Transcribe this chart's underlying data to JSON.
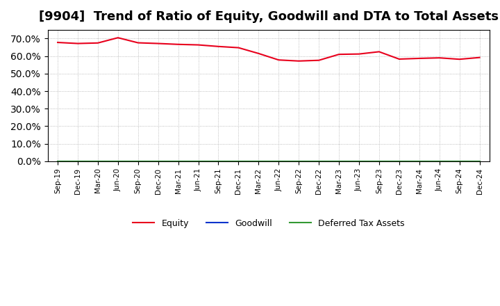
{
  "title": "[9904]  Trend of Ratio of Equity, Goodwill and DTA to Total Assets",
  "x_labels": [
    "Sep-19",
    "Dec-19",
    "Mar-20",
    "Jun-20",
    "Sep-20",
    "Dec-20",
    "Mar-21",
    "Jun-21",
    "Sep-21",
    "Dec-21",
    "Mar-22",
    "Jun-22",
    "Sep-22",
    "Dec-22",
    "Mar-23",
    "Jun-23",
    "Sep-23",
    "Dec-23",
    "Mar-24",
    "Jun-24",
    "Sep-24",
    "Dec-24"
  ],
  "equity": [
    0.678,
    0.672,
    0.675,
    0.705,
    0.676,
    0.672,
    0.667,
    0.664,
    0.655,
    0.648,
    0.615,
    0.578,
    0.572,
    0.576,
    0.61,
    0.612,
    0.625,
    0.583,
    0.587,
    0.59,
    0.582,
    0.592
  ],
  "goodwill": [
    0.0,
    0.0,
    0.0,
    0.0,
    0.0,
    0.0,
    0.0,
    0.0,
    0.0,
    0.0,
    0.0,
    0.0,
    0.0,
    0.0,
    0.0,
    0.0,
    0.0,
    0.0,
    0.0,
    0.0,
    0.0,
    0.0
  ],
  "dta": [
    0.0,
    0.0,
    0.0,
    0.0,
    0.0,
    0.0,
    0.0,
    0.0,
    0.0,
    0.0,
    0.0,
    0.0,
    0.0,
    0.0,
    0.0,
    0.0,
    0.0,
    0.0,
    0.0,
    0.0,
    0.0,
    0.0
  ],
  "equity_color": "#e8001c",
  "goodwill_color": "#0033cc",
  "dta_color": "#339933",
  "ylim": [
    0.0,
    0.75
  ],
  "yticks": [
    0.0,
    0.1,
    0.2,
    0.3,
    0.4,
    0.5,
    0.6,
    0.7
  ],
  "background_color": "#ffffff",
  "plot_bg_color": "#ffffff",
  "grid_color": "#aaaaaa",
  "title_fontsize": 13,
  "legend_labels": [
    "Equity",
    "Goodwill",
    "Deferred Tax Assets"
  ]
}
